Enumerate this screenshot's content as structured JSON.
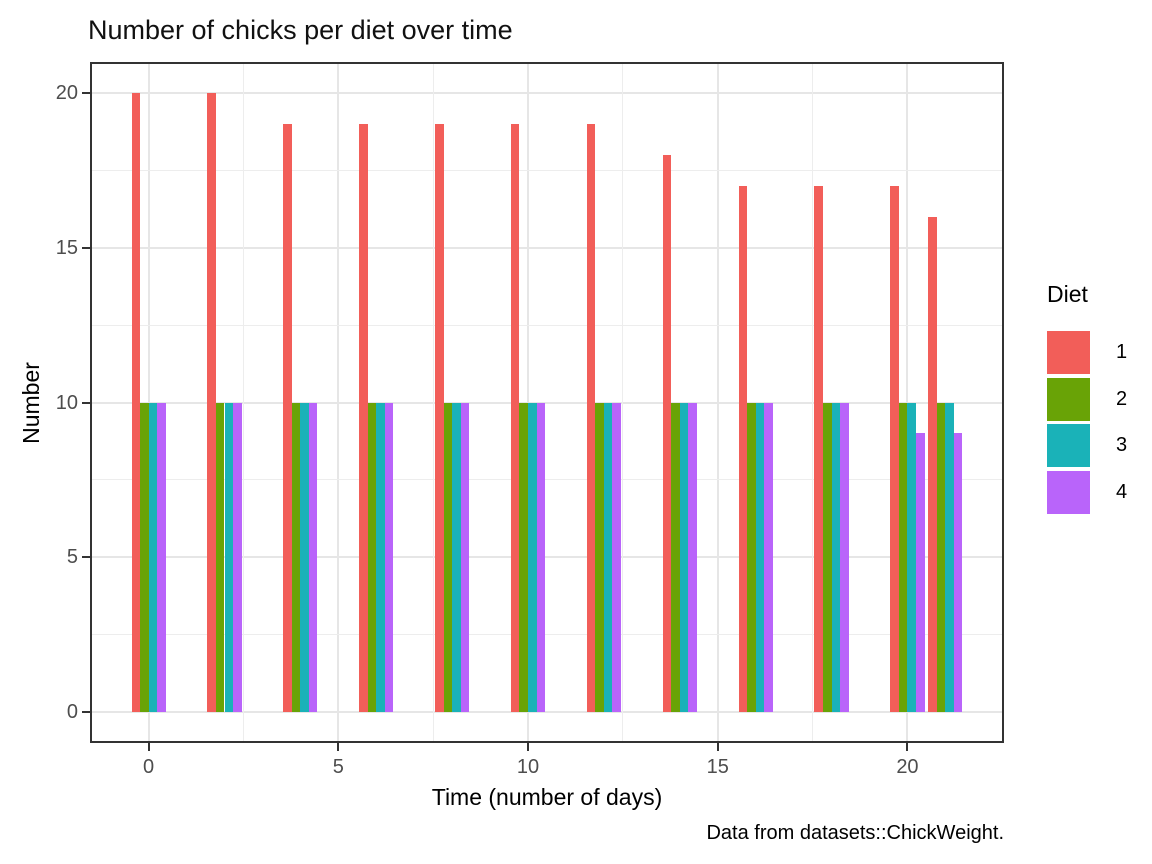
{
  "figure": {
    "background": "#ffffff"
  },
  "chart_data": {
    "type": "bar",
    "title": "Number of chicks per diet over time",
    "xlabel": "Time (number of days)",
    "ylabel": "Number",
    "caption": "Data from datasets::ChickWeight.",
    "legend_title": "Diet",
    "legend_position": "right",
    "categories": [
      0,
      2,
      4,
      6,
      8,
      10,
      12,
      14,
      16,
      18,
      20,
      21
    ],
    "series": [
      {
        "name": "1",
        "color": "#F25E59",
        "values": [
          20,
          20,
          19,
          19,
          19,
          19,
          19,
          18,
          17,
          17,
          17,
          16
        ]
      },
      {
        "name": "2",
        "color": "#69A306",
        "values": [
          10,
          10,
          10,
          10,
          10,
          10,
          10,
          10,
          10,
          10,
          10,
          10
        ]
      },
      {
        "name": "3",
        "color": "#1AB2B8",
        "values": [
          10,
          10,
          10,
          10,
          10,
          10,
          10,
          10,
          10,
          10,
          10,
          10
        ]
      },
      {
        "name": "4",
        "color": "#B964FA",
        "values": [
          10,
          10,
          10,
          10,
          10,
          10,
          10,
          10,
          10,
          10,
          9,
          9
        ]
      }
    ],
    "x_ticks": [
      0,
      5,
      10,
      15,
      20
    ],
    "y_ticks": [
      0,
      5,
      10,
      15,
      20
    ],
    "x_minor": [
      2.5,
      7.5,
      12.5,
      17.5
    ],
    "y_minor": [
      2.5,
      7.5,
      12.5,
      17.5
    ],
    "xlim": [
      -1.545,
      22.545
    ],
    "ylim": [
      -1,
      21
    ],
    "bar_width": 0.225,
    "group_width": 0.9,
    "grid": true,
    "colors": {
      "grid_major": "#e6e6e6",
      "grid_minor": "#ededed",
      "panel_border": "#333333",
      "tick_mark": "#333333",
      "tick_label": "#4d4d4d",
      "text": "#000000",
      "background": "#ffffff"
    }
  }
}
